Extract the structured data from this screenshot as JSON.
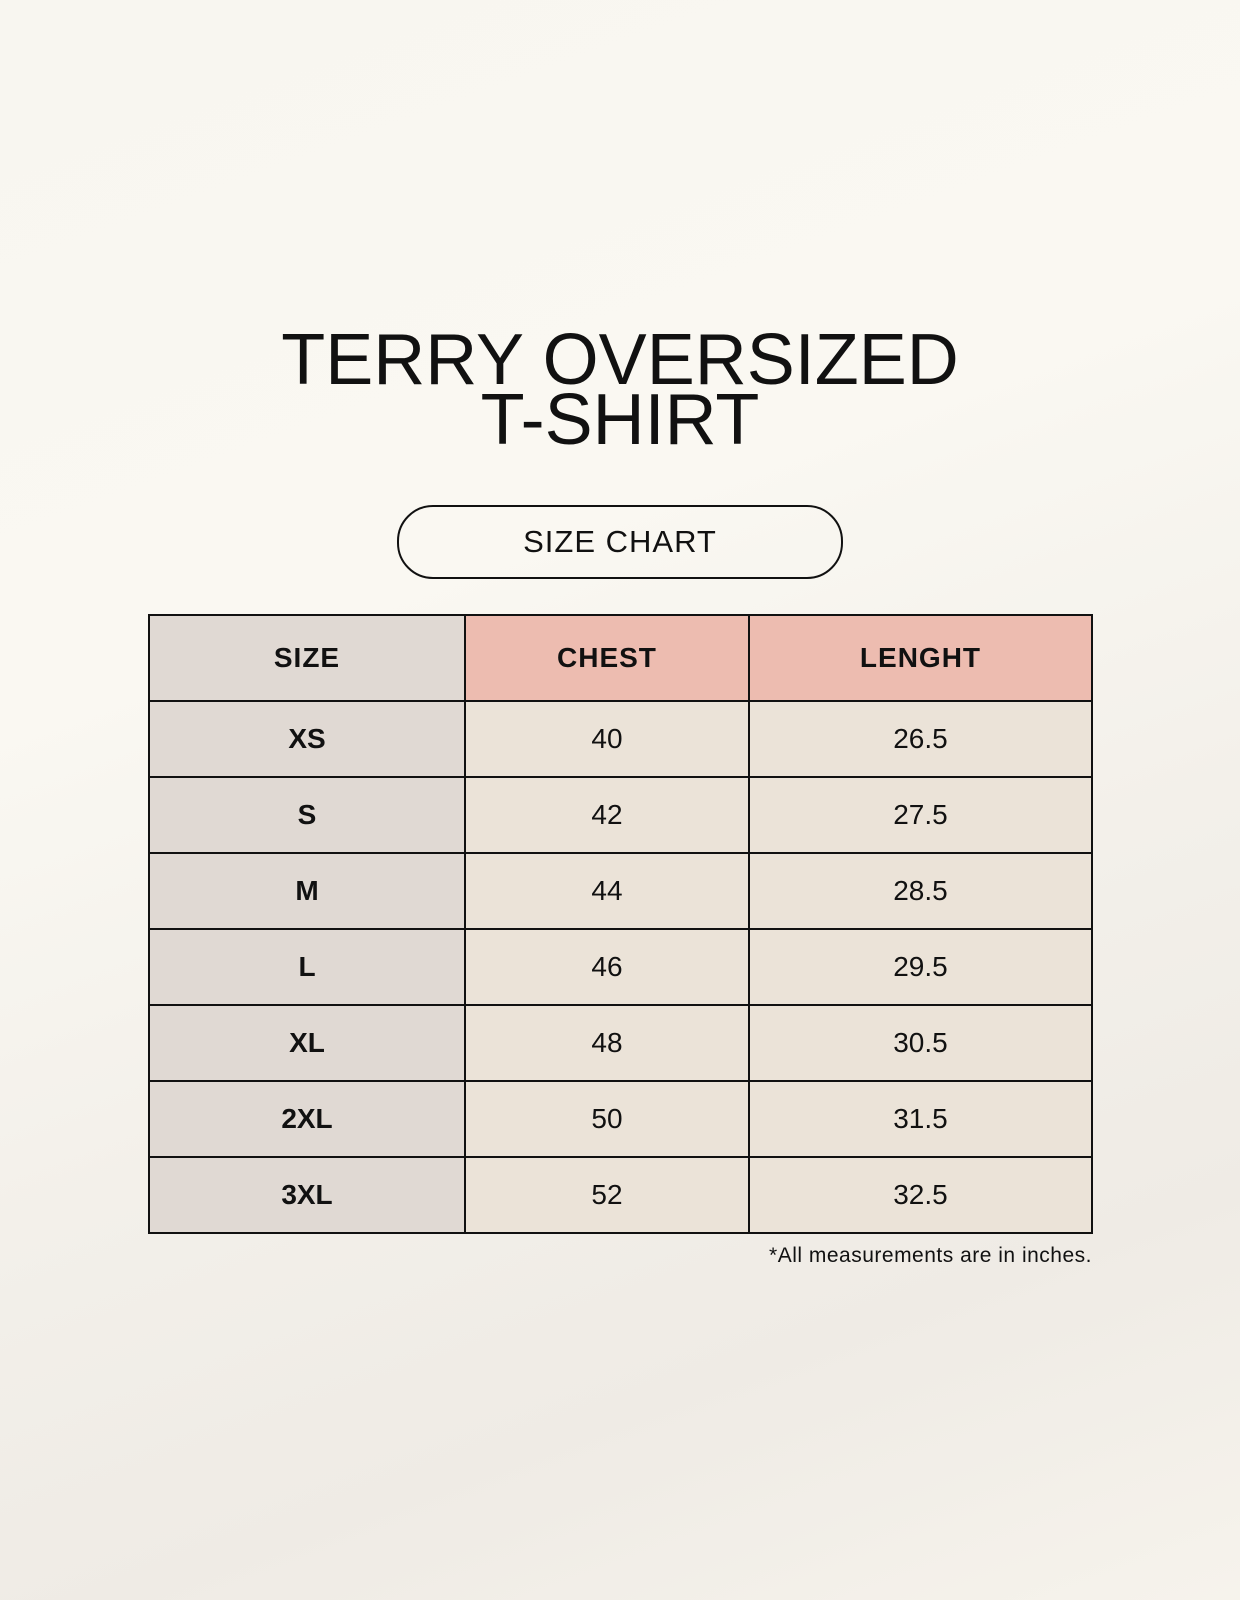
{
  "title": {
    "line1": "TERRY OVERSIZED",
    "line2": "T-SHIRT"
  },
  "subtitle": "SIZE CHART",
  "colors": {
    "header_accent": "#edbcb0",
    "size_column": "#e0d9d3",
    "cells": "#ebe3d8"
  },
  "table": {
    "headers": [
      "SIZE",
      "CHEST",
      "LENGHT"
    ],
    "rows": [
      [
        "XS",
        "40",
        "26.5"
      ],
      [
        "S",
        "42",
        "27.5"
      ],
      [
        "M",
        "44",
        "28.5"
      ],
      [
        "L",
        "46",
        "29.5"
      ],
      [
        "XL",
        "48",
        "30.5"
      ],
      [
        "2XL",
        "50",
        "31.5"
      ],
      [
        "3XL",
        "52",
        "32.5"
      ]
    ]
  },
  "footnote": "*All measurements are in inches."
}
